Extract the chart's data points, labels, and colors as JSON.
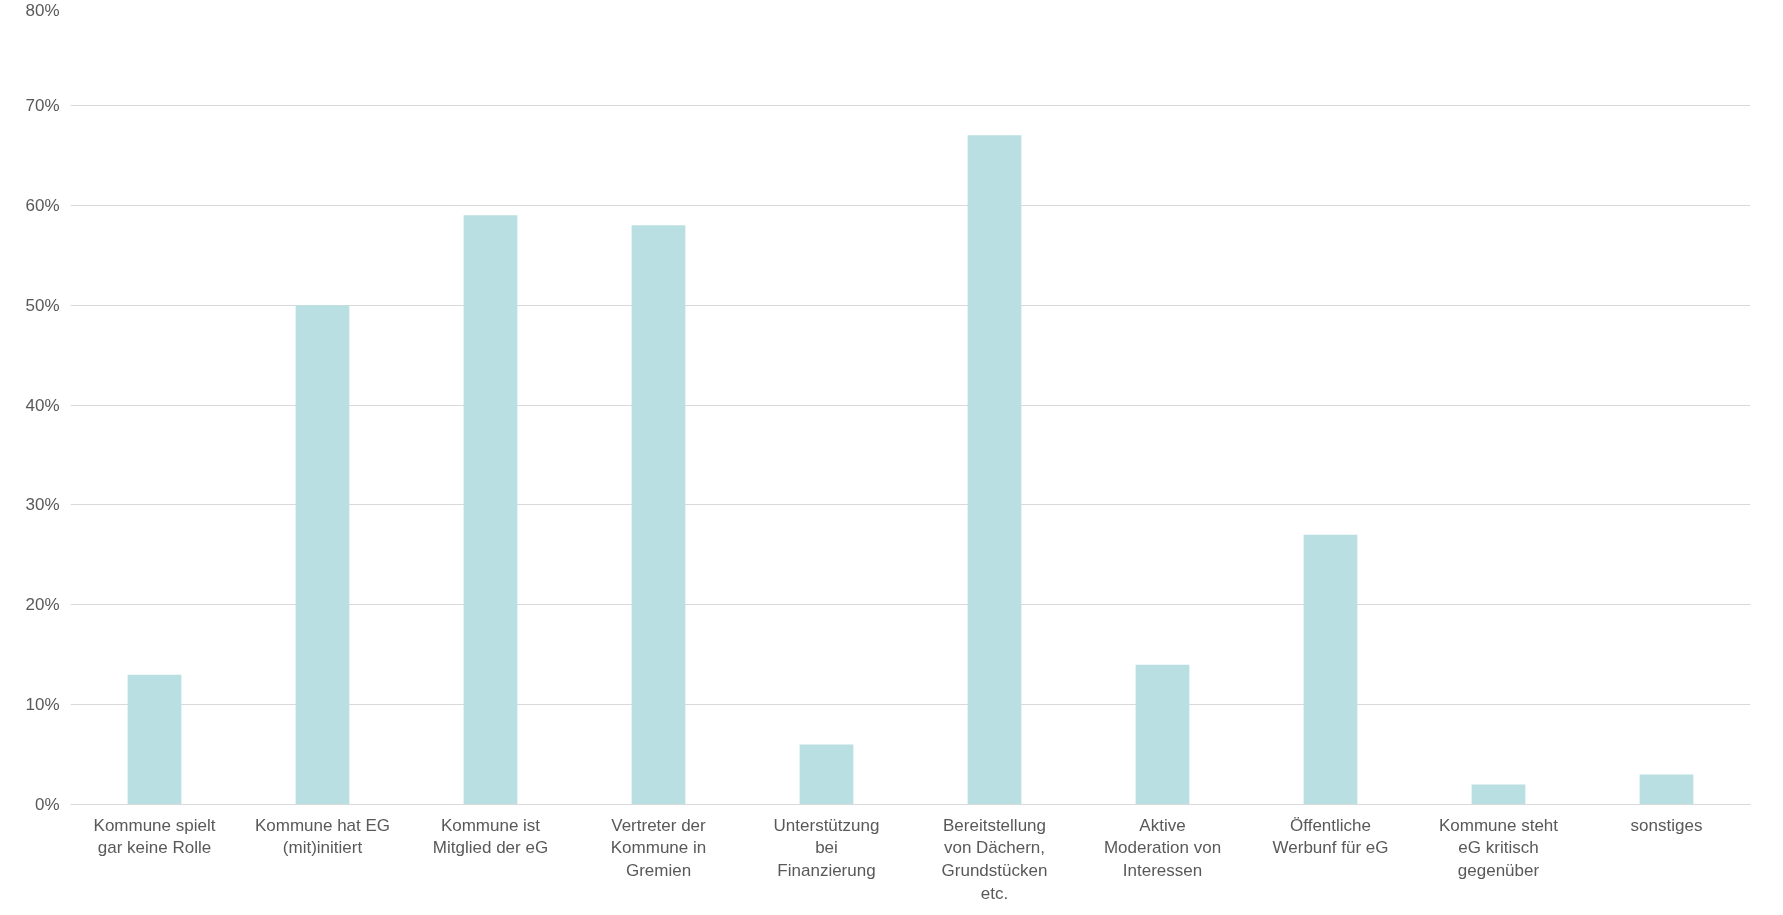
{
  "chart_data": {
    "type": "bar",
    "categories": [
      "Kommune spielt gar keine Rolle",
      "Kommune hat EG (mit)initiert",
      "Kommune ist Mitglied der eG",
      "Vertreter der Kommune in Gremien",
      "Unterstützung bei Finanzierung",
      "Bereitstellung von Dächern, Grundstücken etc.",
      "Aktive Moderation von Interessen",
      "Öffentliche Werbunf für eG",
      "Kommune steht eG kritisch gegenüber",
      "sonstiges"
    ],
    "values": [
      13,
      50,
      59,
      58,
      6,
      67,
      14,
      27,
      2,
      3
    ],
    "color": "#b9dfe2",
    "ylim": [
      0,
      80
    ],
    "yticks": [
      {
        "value": 0,
        "label": "0%"
      },
      {
        "value": 10,
        "label": "10%"
      },
      {
        "value": 20,
        "label": "20%"
      },
      {
        "value": 30,
        "label": "30%"
      },
      {
        "value": 40,
        "label": "40%"
      },
      {
        "value": 50,
        "label": "50%"
      },
      {
        "value": 60,
        "label": "60%"
      },
      {
        "value": 70,
        "label": "70%"
      },
      {
        "value": 80,
        "label": "80%"
      }
    ],
    "grid": "y"
  }
}
